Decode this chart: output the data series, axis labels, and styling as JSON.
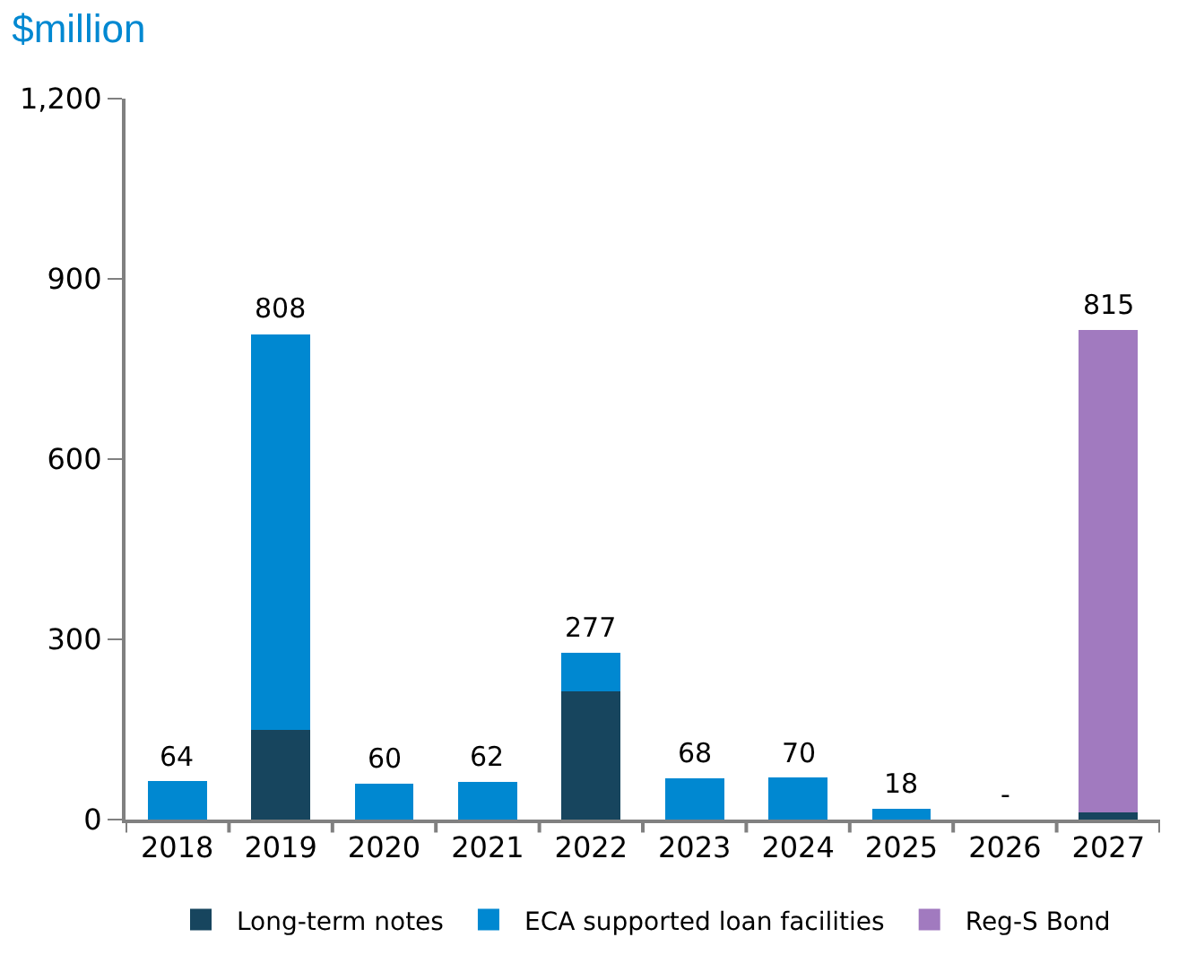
{
  "chart_data": {
    "type": "bar",
    "title": "$million",
    "stacked": true,
    "categories": [
      "2018",
      "2019",
      "2020",
      "2021",
      "2022",
      "2023",
      "2024",
      "2025",
      "2026",
      "2027"
    ],
    "series": [
      {
        "name": "Long-term notes",
        "color": "#17455e",
        "values": [
          null,
          150,
          null,
          null,
          214,
          null,
          null,
          null,
          null,
          12
        ]
      },
      {
        "name": "ECA supported loan facilities",
        "color": "#0088d1",
        "values": [
          64,
          658,
          60,
          62,
          63,
          68,
          70,
          18,
          null,
          null
        ]
      },
      {
        "name": "Reg-S Bond",
        "color": "#a17abf",
        "values": [
          null,
          null,
          null,
          null,
          null,
          null,
          null,
          null,
          null,
          803
        ]
      }
    ],
    "totals": [
      "64",
      "808",
      "60",
      "62",
      "277",
      "68",
      "70",
      "18",
      "-",
      "815"
    ],
    "ylim": [
      0,
      1200
    ],
    "yticks": [
      0,
      300,
      600,
      900,
      {
        "value": 1200,
        "label": "1,200"
      }
    ],
    "legend": "bottom"
  }
}
